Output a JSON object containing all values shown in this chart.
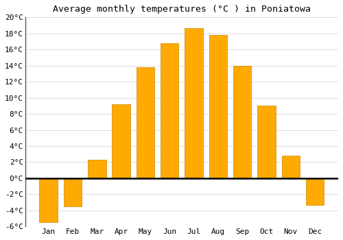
{
  "title": "Average monthly temperatures (°C ) in Poniatowa",
  "months": [
    "Jan",
    "Feb",
    "Mar",
    "Apr",
    "May",
    "Jun",
    "Jul",
    "Aug",
    "Sep",
    "Oct",
    "Nov",
    "Dec"
  ],
  "values": [
    -5.5,
    -3.5,
    2.3,
    9.2,
    13.8,
    16.8,
    18.7,
    17.8,
    14.0,
    9.0,
    2.8,
    -3.3
  ],
  "bar_color": "#FFAA00",
  "bar_edge_color": "#CC8800",
  "background_color": "#FFFFFF",
  "plot_bg_color": "#FFFFFF",
  "ylim": [
    -6,
    20
  ],
  "yticks": [
    -6,
    -4,
    -2,
    0,
    2,
    4,
    6,
    8,
    10,
    12,
    14,
    16,
    18,
    20
  ],
  "ytick_labels": [
    "-6°C",
    "-4°C",
    "-2°C",
    "0°C",
    "2°C",
    "4°C",
    "6°C",
    "8°C",
    "10°C",
    "12°C",
    "14°C",
    "16°C",
    "18°C",
    "20°C"
  ],
  "title_fontsize": 9.5,
  "tick_fontsize": 8,
  "grid_color": "#DDDDDD",
  "zero_line_color": "#000000",
  "left_spine_color": "#555555",
  "bar_width": 0.75
}
